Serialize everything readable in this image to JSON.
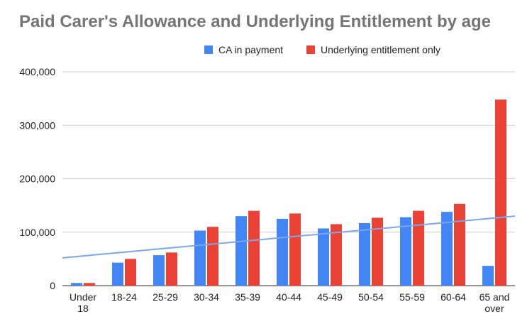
{
  "chart_data": {
    "type": "bar",
    "title": "Paid Carer's Allowance and Underlying Entitlement by age",
    "xlabel": "",
    "ylabel": "",
    "categories": [
      [
        "Under",
        "18"
      ],
      [
        "18-24"
      ],
      [
        "25-29"
      ],
      [
        "30-34"
      ],
      [
        "35-39"
      ],
      [
        "40-44"
      ],
      [
        "45-49"
      ],
      [
        "50-54"
      ],
      [
        "55-59"
      ],
      [
        "60-64"
      ],
      [
        "65 and",
        "over"
      ]
    ],
    "series": [
      {
        "name": "CA in payment",
        "color": "#4285f4",
        "values": [
          5000,
          43000,
          57000,
          103000,
          130000,
          125000,
          107000,
          117000,
          128000,
          138000,
          37000
        ]
      },
      {
        "name": "Underlying entitlement only",
        "color": "#ea4335",
        "values": [
          5000,
          50000,
          62000,
          110000,
          140000,
          135000,
          115000,
          127000,
          140000,
          153000,
          348000
        ]
      }
    ],
    "trendline": {
      "series": "CA in payment",
      "color": "#7ba7ee",
      "start": 52000,
      "end": 130000
    },
    "yticks": [
      "0",
      "100,000",
      "200,000",
      "300,000",
      "400,000"
    ],
    "ytick_values": [
      0,
      100000,
      200000,
      300000,
      400000
    ],
    "ylim": [
      0,
      400000
    ],
    "grid": true,
    "legend": "top-right"
  }
}
